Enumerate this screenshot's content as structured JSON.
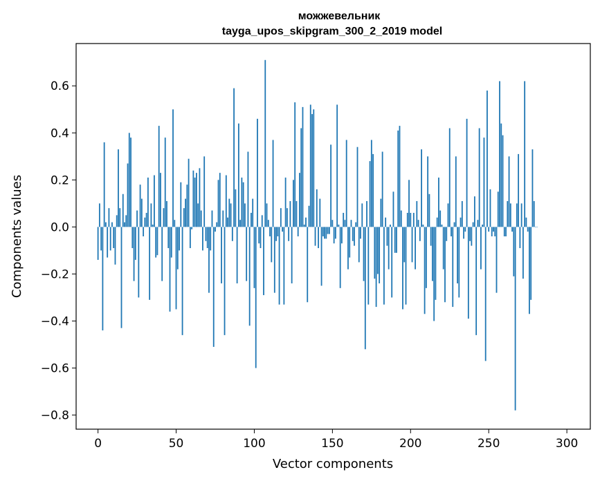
{
  "chart_data": {
    "type": "bar",
    "title": "можжевельник",
    "subtitle": "tayga_upos_skipgram_300_2_2019 model",
    "xlabel": "Vector components",
    "ylabel": "Components values",
    "xlim": [
      -14,
      315
    ],
    "ylim": [
      -0.86,
      0.78
    ],
    "xticks": [
      0,
      50,
      100,
      150,
      200,
      250,
      300
    ],
    "yticks": [
      -0.8,
      -0.6,
      -0.4,
      -0.2,
      0.0,
      0.2,
      0.4,
      0.6
    ],
    "ytick_labels": [
      "−0.8",
      "−0.6",
      "−0.4",
      "−0.2",
      "0.0",
      "0.2",
      "0.4",
      "0.6"
    ],
    "bar_color": "#1f77b4",
    "values": [
      -0.14,
      0.1,
      -0.1,
      -0.44,
      0.36,
      0.02,
      -0.13,
      0.08,
      -0.1,
      0.02,
      -0.09,
      -0.16,
      0.05,
      0.33,
      0.08,
      -0.43,
      0.14,
      0.02,
      0.05,
      0.27,
      0.4,
      0.38,
      -0.09,
      -0.23,
      -0.14,
      0.07,
      -0.3,
      0.18,
      0.12,
      -0.04,
      0.04,
      0.06,
      0.21,
      -0.31,
      0.1,
      0.01,
      0.22,
      -0.13,
      -0.12,
      0.43,
      0.23,
      -0.23,
      0.08,
      0.38,
      0.11,
      -0.09,
      -0.36,
      -0.13,
      0.5,
      0.03,
      -0.35,
      -0.18,
      -0.1,
      0.19,
      -0.46,
      0.08,
      0.12,
      0.18,
      0.29,
      -0.09,
      -0.01,
      0.24,
      0.21,
      0.23,
      0.1,
      0.25,
      0.07,
      -0.1,
      0.3,
      -0.06,
      -0.09,
      -0.28,
      -0.1,
      0.07,
      -0.51,
      -0.02,
      0.02,
      0.2,
      0.23,
      -0.24,
      0.07,
      -0.46,
      0.22,
      0.04,
      0.12,
      0.1,
      -0.06,
      0.59,
      0.16,
      -0.24,
      0.44,
      0.03,
      0.21,
      0.19,
      0.1,
      -0.23,
      0.32,
      -0.42,
      0.06,
      0.12,
      -0.26,
      -0.6,
      0.46,
      -0.07,
      -0.09,
      0.05,
      -0.29,
      0.71,
      0.1,
      0.03,
      -0.04,
      -0.15,
      0.37,
      -0.28,
      -0.06,
      -0.04,
      -0.33,
      0.08,
      -0.02,
      -0.33,
      0.21,
      0.08,
      -0.06,
      0.11,
      -0.24,
      0.2,
      0.53,
      0.11,
      -0.04,
      0.23,
      0.42,
      0.51,
      0.01,
      0.04,
      -0.32,
      0.09,
      0.52,
      0.48,
      0.5,
      -0.08,
      0.16,
      -0.09,
      0.12,
      -0.25,
      -0.04,
      -0.05,
      -0.05,
      -0.03,
      -0.03,
      0.35,
      0.03,
      -0.07,
      -0.05,
      0.52,
      0.01,
      -0.26,
      -0.07,
      0.06,
      0.03,
      0.37,
      -0.18,
      -0.13,
      0.03,
      -0.06,
      -0.08,
      0.02,
      0.34,
      -0.15,
      -0.05,
      0.1,
      -0.23,
      -0.52,
      0.11,
      -0.33,
      0.28,
      0.37,
      0.31,
      -0.22,
      -0.34,
      -0.2,
      -0.24,
      0.12,
      0.32,
      -0.33,
      0.04,
      -0.08,
      -0.18,
      0.01,
      -0.3,
      0.15,
      -0.11,
      -0.11,
      0.41,
      0.43,
      0.07,
      -0.35,
      -0.15,
      -0.33,
      0.06,
      0.2,
      0.06,
      -0.15,
      0.06,
      -0.18,
      0.11,
      0.03,
      -0.06,
      0.33,
      0.01,
      -0.37,
      -0.26,
      0.3,
      0.14,
      -0.08,
      -0.23,
      -0.4,
      -0.31,
      0.04,
      0.21,
      0.07,
      0.01,
      -0.18,
      -0.32,
      -0.06,
      0.1,
      0.42,
      -0.04,
      -0.34,
      0.02,
      0.3,
      -0.24,
      -0.3,
      0.04,
      0.11,
      -0.05,
      -0.02,
      0.46,
      -0.39,
      -0.06,
      -0.08,
      0.02,
      0.13,
      -0.46,
      0.03,
      0.42,
      -0.18,
      0.01,
      0.38,
      -0.57,
      0.58,
      -0.02,
      0.16,
      -0.04,
      -0.02,
      -0.04,
      -0.28,
      0.15,
      0.62,
      0.44,
      0.39,
      -0.04,
      -0.04,
      0.11,
      0.3,
      0.1,
      -0.02,
      -0.21,
      -0.78,
      0.1,
      0.31,
      -0.09,
      0.1,
      -0.22,
      0.62,
      0.04,
      -0.02,
      -0.37,
      -0.31,
      0.33,
      0.11,
      0.0,
      0.0
    ]
  }
}
